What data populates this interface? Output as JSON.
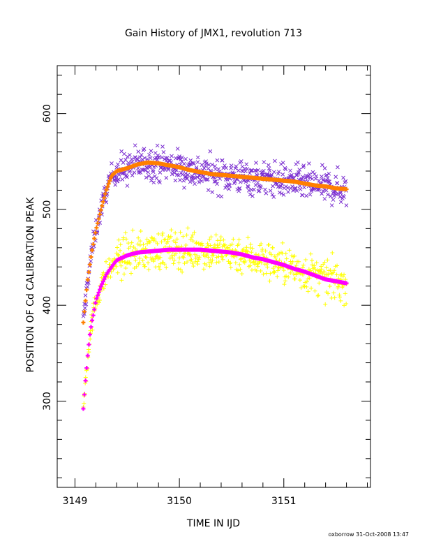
{
  "chart_data": {
    "type": "scatter",
    "title": "Gain History of JMX1, revolution 713",
    "xlabel": "TIME IN IJD",
    "ylabel": "POSITION OF Cd CALIBRATION PEAK",
    "xlim": [
      3148.83,
      3151.83
    ],
    "ylim": [
      210,
      650
    ],
    "x_ticks": [
      3149,
      3150,
      3151
    ],
    "y_ticks": [
      300,
      400,
      500,
      600
    ],
    "grid": false,
    "footer": "oxborrow 31-Oct-2008 13:47",
    "series": [
      {
        "kind": "scatter",
        "marker": "x",
        "color": "#7b2fd0",
        "x": [
          3149.08,
          3149.12,
          3149.16,
          3149.2,
          3149.25,
          3149.3,
          3149.35,
          3149.4,
          3149.5,
          3149.6,
          3149.7,
          3149.8,
          3149.9,
          3150.0,
          3150.1,
          3150.2,
          3150.3,
          3150.4,
          3150.5,
          3150.6,
          3150.7,
          3150.8,
          3150.9,
          3151.0,
          3151.1,
          3151.2,
          3151.3,
          3151.4,
          3151.5,
          3151.6
        ],
        "y": [
          382,
          425,
          455,
          478,
          500,
          520,
          535,
          540,
          543,
          547,
          549,
          548,
          546,
          544,
          541,
          539,
          537,
          536,
          535,
          534,
          533,
          532,
          531,
          530,
          529,
          527,
          525,
          524,
          522,
          521
        ],
        "spread": 16
      },
      {
        "kind": "scatter",
        "marker": "+",
        "color": "#ffff00",
        "x": [
          3149.08,
          3149.1,
          3149.12,
          3149.14,
          3149.16,
          3149.18,
          3149.2,
          3149.25,
          3149.3,
          3149.35,
          3149.4,
          3149.5,
          3149.6,
          3149.7,
          3149.8,
          3149.9,
          3150.0,
          3150.1,
          3150.2,
          3150.3,
          3150.4,
          3150.5,
          3150.6,
          3150.7,
          3150.8,
          3150.9,
          3151.0,
          3151.1,
          3151.2,
          3151.3,
          3151.4,
          3151.5,
          3151.6
        ],
        "y": [
          292,
          320,
          345,
          367,
          382,
          392,
          405,
          420,
          432,
          440,
          447,
          452,
          455,
          456,
          457,
          458,
          458,
          458,
          458,
          457,
          456,
          455,
          453,
          450,
          448,
          445,
          442,
          438,
          435,
          431,
          427,
          425,
          423
        ],
        "spread": 18
      },
      {
        "kind": "fit",
        "color": "#ff7f00",
        "x": [
          3149.08,
          3149.12,
          3149.16,
          3149.2,
          3149.25,
          3149.3,
          3149.35,
          3149.4,
          3149.5,
          3149.6,
          3149.7,
          3149.8,
          3149.9,
          3150.0,
          3150.1,
          3150.2,
          3150.3,
          3150.4,
          3150.5,
          3150.6,
          3150.7,
          3150.8,
          3150.9,
          3151.0,
          3151.1,
          3151.2,
          3151.3,
          3151.4,
          3151.5,
          3151.6
        ],
        "y": [
          382,
          425,
          455,
          478,
          500,
          520,
          535,
          540,
          543,
          547,
          549,
          548,
          546,
          544,
          541,
          539,
          537,
          536,
          535,
          534,
          533,
          532,
          531,
          530,
          529,
          527,
          525,
          524,
          522,
          521
        ]
      },
      {
        "kind": "fit",
        "color": "#ff00ff",
        "x": [
          3149.08,
          3149.1,
          3149.12,
          3149.14,
          3149.16,
          3149.18,
          3149.2,
          3149.25,
          3149.3,
          3149.35,
          3149.4,
          3149.5,
          3149.6,
          3149.7,
          3149.8,
          3149.9,
          3150.0,
          3150.1,
          3150.2,
          3150.3,
          3150.4,
          3150.5,
          3150.6,
          3150.7,
          3150.8,
          3150.9,
          3151.0,
          3151.1,
          3151.2,
          3151.3,
          3151.4,
          3151.5,
          3151.6
        ],
        "y": [
          292,
          320,
          345,
          367,
          382,
          392,
          405,
          420,
          432,
          440,
          447,
          452,
          455,
          456,
          457,
          458,
          458,
          458,
          458,
          457,
          456,
          455,
          453,
          450,
          448,
          445,
          442,
          438,
          435,
          431,
          427,
          425,
          423
        ]
      }
    ]
  }
}
